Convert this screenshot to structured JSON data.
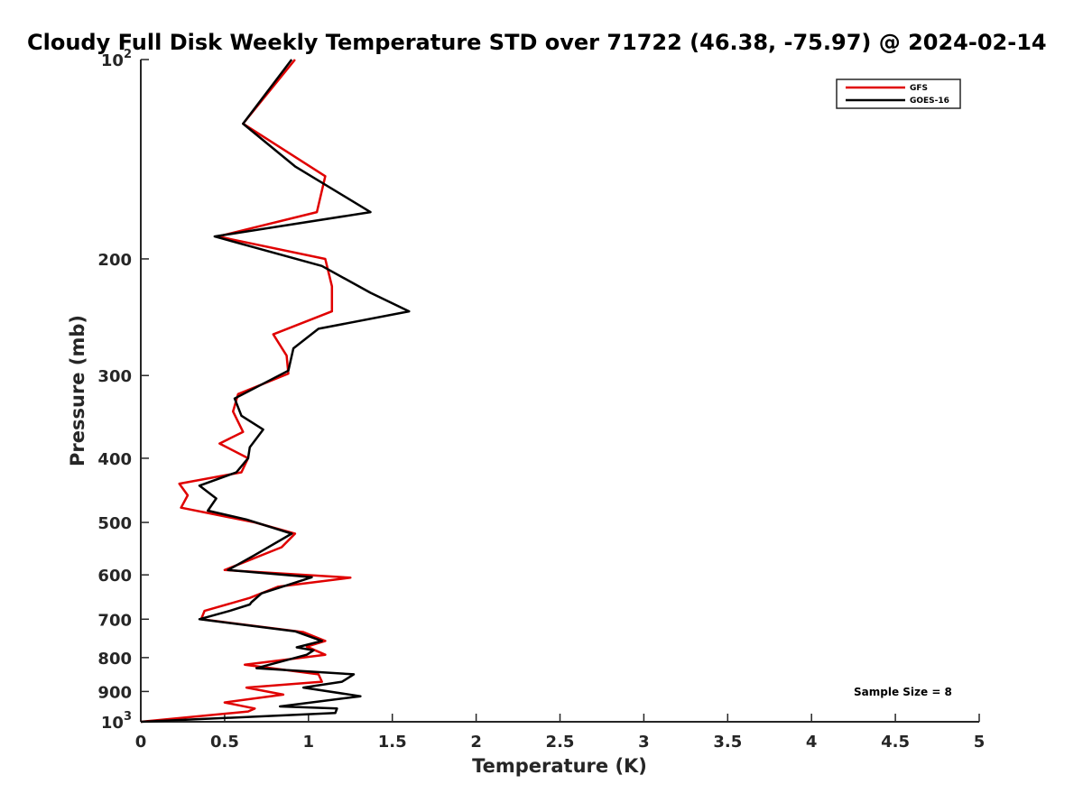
{
  "chart_data": {
    "type": "line",
    "title": "Cloudy Full Disk Weekly Temperature STD over 71722 (46.38, -75.97) @ 2024-02-14",
    "xlabel": "Temperature (K)",
    "ylabel": "Pressure (mb)",
    "xlim": [
      0,
      5
    ],
    "ylim": [
      100,
      1000
    ],
    "yscale": "log",
    "y_reversed": true,
    "grid": false,
    "legend_position": "top-right",
    "x_ticks": [
      0,
      0.5,
      1,
      1.5,
      2,
      2.5,
      3,
      3.5,
      4,
      4.5,
      5
    ],
    "x_tick_labels": [
      "0",
      "0.5",
      "1",
      "1.5",
      "2",
      "2.5",
      "3",
      "3.5",
      "4",
      "4.5",
      "5"
    ],
    "y_ticks": [
      100,
      200,
      300,
      400,
      500,
      600,
      700,
      800,
      900,
      1000
    ],
    "y_tick_labels": [
      {
        "base": "10",
        "exp": "2"
      },
      {
        "base": "200",
        "exp": ""
      },
      {
        "base": "300",
        "exp": ""
      },
      {
        "base": "400",
        "exp": ""
      },
      {
        "base": "500",
        "exp": ""
      },
      {
        "base": "600",
        "exp": ""
      },
      {
        "base": "700",
        "exp": ""
      },
      {
        "base": "800",
        "exp": ""
      },
      {
        "base": "900",
        "exp": ""
      },
      {
        "base": "10",
        "exp": "3"
      }
    ],
    "series": [
      {
        "name": "GFS",
        "color": "#e00000",
        "points": [
          [
            0.92,
            100
          ],
          [
            0.61,
            125
          ],
          [
            1.1,
            150
          ],
          [
            1.05,
            170
          ],
          [
            0.46,
            185
          ],
          [
            1.1,
            200
          ],
          [
            1.14,
            220
          ],
          [
            1.14,
            240
          ],
          [
            0.79,
            260
          ],
          [
            0.87,
            280
          ],
          [
            0.88,
            298
          ],
          [
            0.58,
            320
          ],
          [
            0.55,
            340
          ],
          [
            0.61,
            365
          ],
          [
            0.47,
            380
          ],
          [
            0.64,
            400
          ],
          [
            0.6,
            420
          ],
          [
            0.23,
            437
          ],
          [
            0.28,
            455
          ],
          [
            0.24,
            475
          ],
          [
            0.68,
            500
          ],
          [
            0.92,
            520
          ],
          [
            0.84,
            545
          ],
          [
            0.5,
            590
          ],
          [
            1.25,
            606
          ],
          [
            0.82,
            625
          ],
          [
            0.65,
            650
          ],
          [
            0.38,
            680
          ],
          [
            0.36,
            700
          ],
          [
            0.97,
            732
          ],
          [
            1.1,
            755
          ],
          [
            0.99,
            770
          ],
          [
            1.1,
            792
          ],
          [
            0.62,
            820
          ],
          [
            1.06,
            848
          ],
          [
            1.08,
            870
          ],
          [
            0.63,
            888
          ],
          [
            0.85,
            910
          ],
          [
            0.5,
            935
          ],
          [
            0.68,
            955
          ],
          [
            0.64,
            965
          ],
          [
            0.0,
            1000
          ]
        ]
      },
      {
        "name": "GOES-16",
        "color": "#000000",
        "points": [
          [
            0.9,
            100
          ],
          [
            0.61,
            125
          ],
          [
            0.92,
            145
          ],
          [
            1.37,
            170
          ],
          [
            0.44,
            185
          ],
          [
            1.08,
            205
          ],
          [
            1.37,
            225
          ],
          [
            1.6,
            240
          ],
          [
            1.06,
            255
          ],
          [
            0.91,
            273
          ],
          [
            0.88,
            295
          ],
          [
            0.56,
            325
          ],
          [
            0.6,
            345
          ],
          [
            0.73,
            362
          ],
          [
            0.65,
            385
          ],
          [
            0.64,
            400
          ],
          [
            0.57,
            420
          ],
          [
            0.35,
            440
          ],
          [
            0.45,
            460
          ],
          [
            0.4,
            480
          ],
          [
            0.63,
            495
          ],
          [
            0.9,
            520
          ],
          [
            0.68,
            560
          ],
          [
            0.52,
            590
          ],
          [
            1.02,
            605
          ],
          [
            0.72,
            640
          ],
          [
            0.66,
            660
          ],
          [
            0.65,
            665
          ],
          [
            0.53,
            680
          ],
          [
            0.35,
            700
          ],
          [
            0.92,
            730
          ],
          [
            1.08,
            755
          ],
          [
            0.93,
            772
          ],
          [
            1.03,
            780
          ],
          [
            0.99,
            792
          ],
          [
            0.69,
            830
          ],
          [
            1.27,
            848
          ],
          [
            1.2,
            870
          ],
          [
            0.97,
            888
          ],
          [
            1.31,
            915
          ],
          [
            0.83,
            948
          ],
          [
            1.17,
            955
          ],
          [
            1.16,
            970
          ],
          [
            0.0,
            1000
          ]
        ]
      }
    ],
    "legend": [
      "GFS",
      "GOES-16"
    ],
    "annotation": "Sample Size = 8"
  }
}
